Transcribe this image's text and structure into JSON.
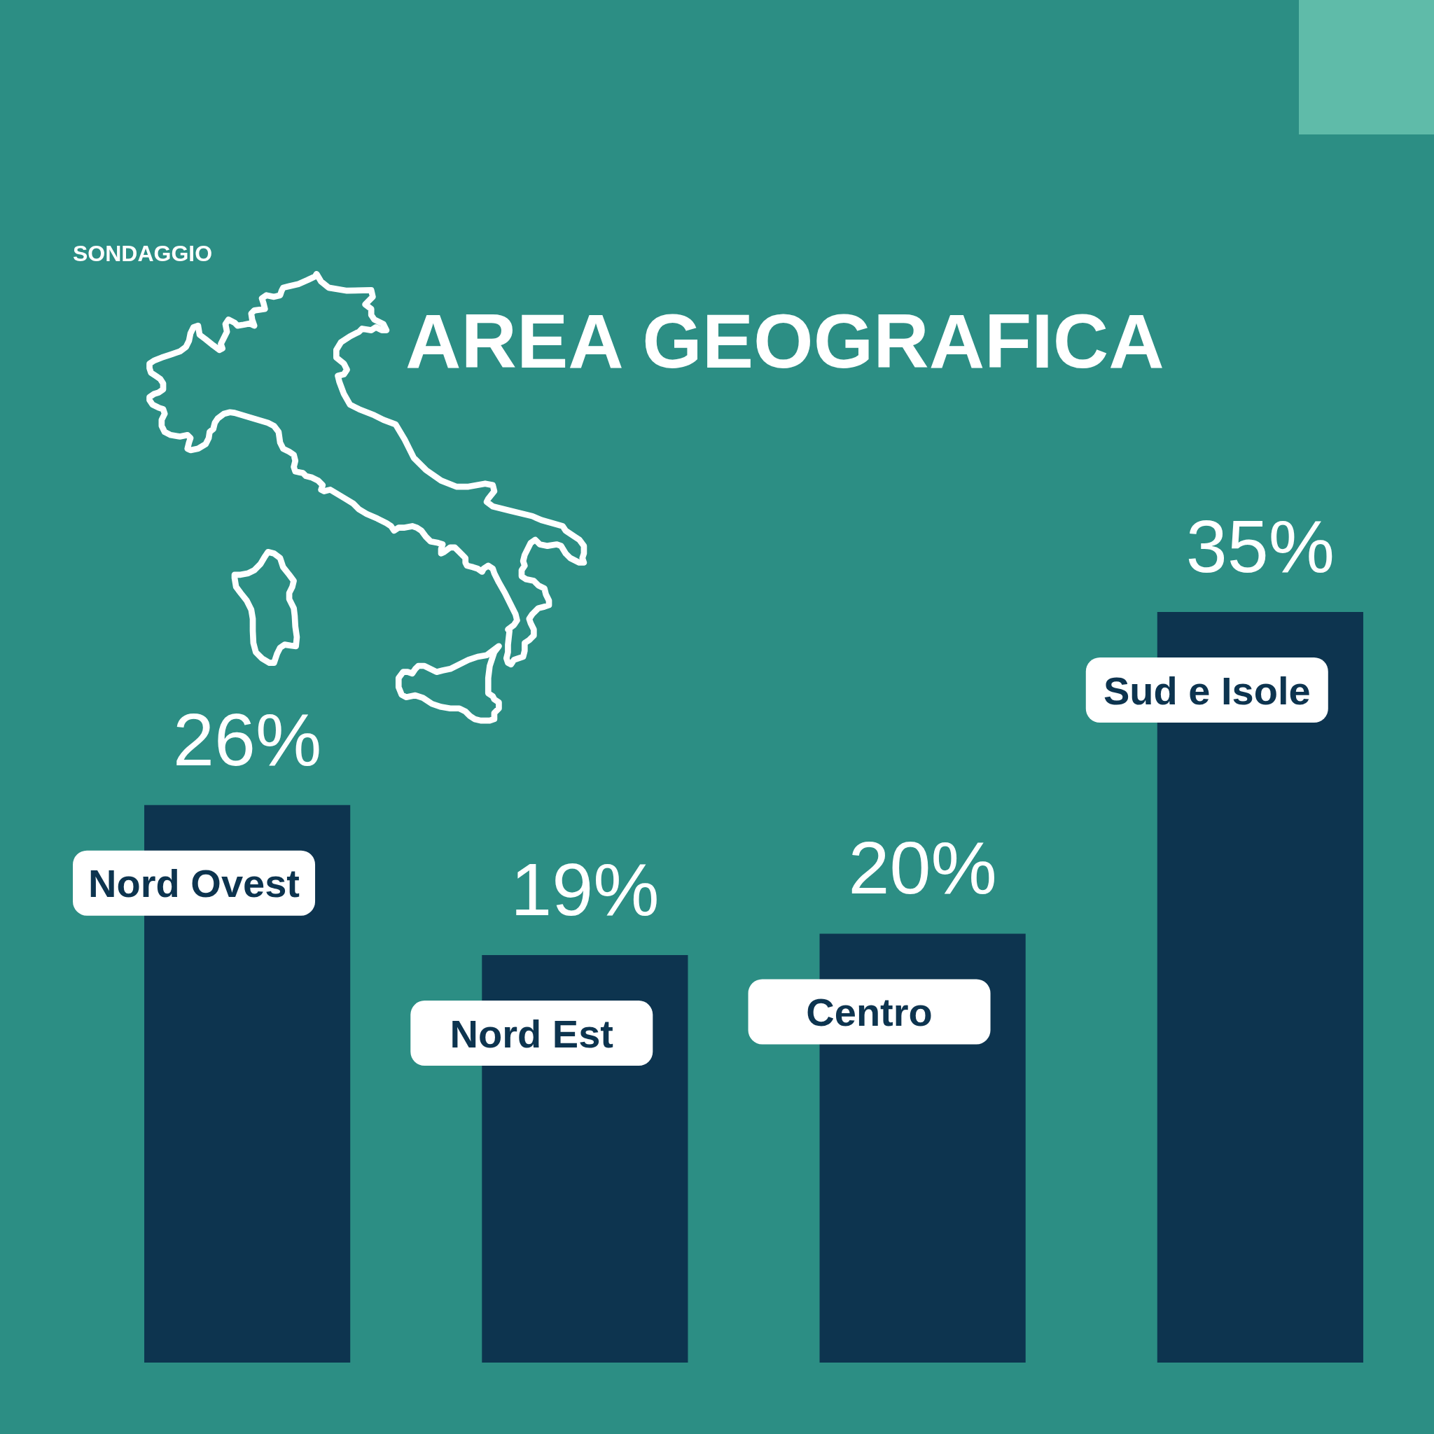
{
  "chart_data": {
    "type": "bar",
    "title": "AREA GEOGRAFICA",
    "subtitle": "SONDAGGIO",
    "categories": [
      "Nord Ovest",
      "Nord Est",
      "Centro",
      "Sud e Isole"
    ],
    "values": [
      26,
      19,
      20,
      35
    ],
    "value_labels": [
      "26%",
      "19%",
      "20%",
      "35%"
    ],
    "color": "#0d344f"
  }
}
